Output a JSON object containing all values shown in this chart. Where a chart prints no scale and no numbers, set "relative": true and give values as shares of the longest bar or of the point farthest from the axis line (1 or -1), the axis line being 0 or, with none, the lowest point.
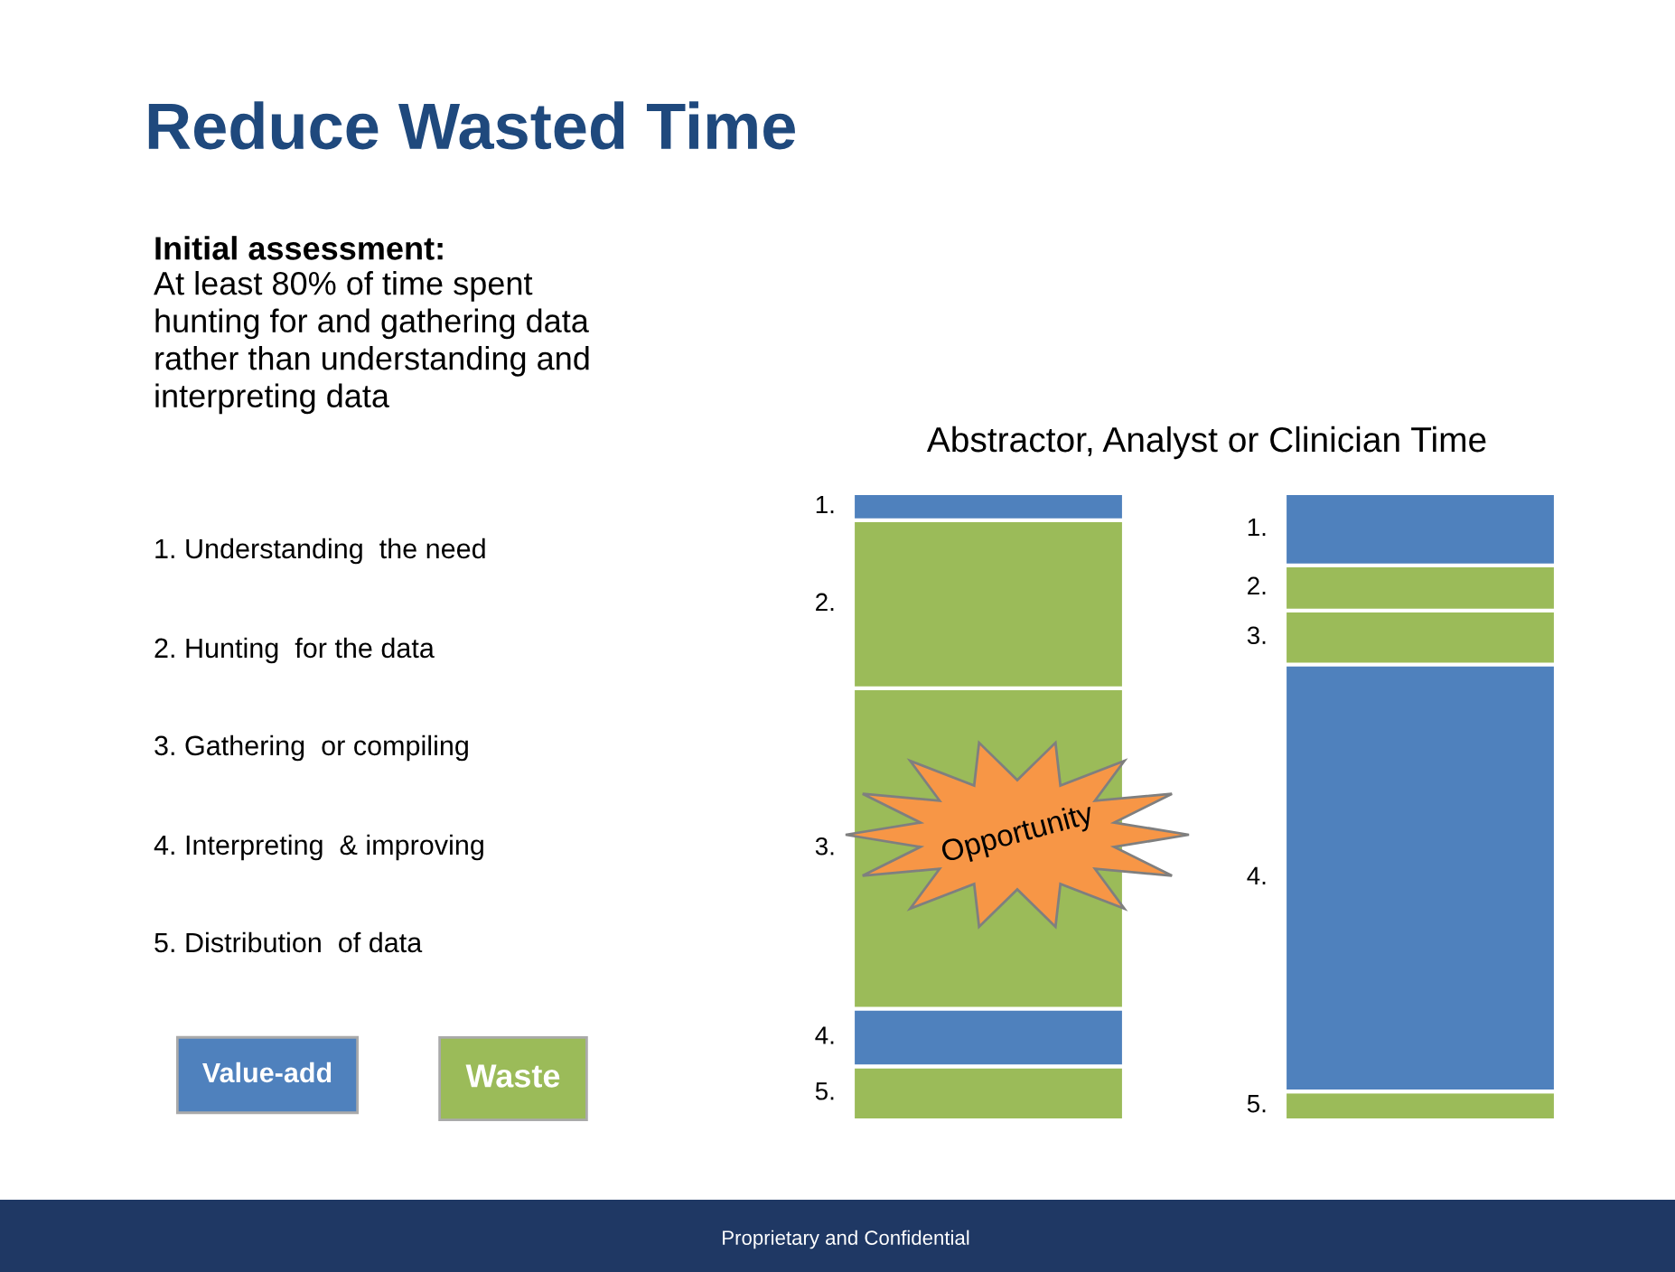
{
  "chart_data": {
    "type": "bar",
    "stacked": true,
    "relative": true,
    "title": "Reduce Wasted Time",
    "subtitle": "Abstractor, Analyst or Clinician Time",
    "categories": [
      null,
      null
    ],
    "series": [
      {
        "name": "5.",
        "color": "#9bbb59",
        "values": [
          0.086,
          0.046
        ]
      },
      {
        "name": "4.",
        "color": "#4f81bd",
        "values": [
          0.092,
          0.681
        ]
      },
      {
        "name": "3.",
        "color": "#9bbb59",
        "values": [
          0.511,
          0.086
        ]
      },
      {
        "name": "2.",
        "color": "#9bbb59",
        "values": [
          0.268,
          0.072
        ]
      },
      {
        "name": "1.",
        "color": "#4f81bd",
        "values": [
          0.043,
          0.115
        ]
      }
    ],
    "annotations": [
      "Initial assessment:",
      "At least 80% of time spent\nhunting for and gathering data\nrather than understanding and\ninterpreting data",
      "1. Understanding  the need",
      "2. Hunting  for the data",
      "3. Gathering  or compiling",
      "4. Interpreting  & improving",
      "5. Distribution  of data",
      "Value-add",
      "Waste",
      "Opportunity",
      "Proprietary and Confidential"
    ]
  }
}
